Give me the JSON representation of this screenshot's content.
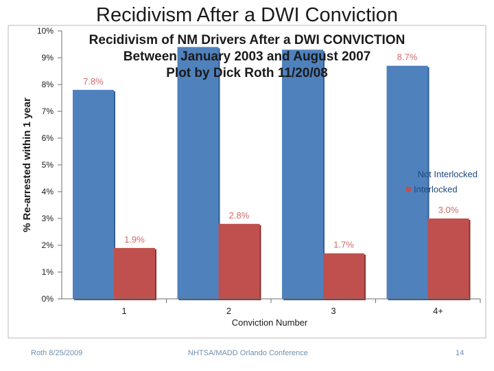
{
  "slide": {
    "title": "Recidivism After a DWI Conviction",
    "footer_date": "Roth 8/25/2009",
    "footer_conference": "NHTSA/MADD Orlando Conference",
    "page_number": "14"
  },
  "chart_data": {
    "type": "bar",
    "title_lines": [
      "Recidivism of NM Drivers After a DWI CONVICTION",
      "Between January 2003 and August 2007",
      "Plot by Dick Roth  11/20/08"
    ],
    "xlabel": "Conviction Number",
    "ylabel": "% Re-arrested within 1 year",
    "categories": [
      "1",
      "2",
      "3",
      "4+"
    ],
    "ylim": [
      0,
      10
    ],
    "yticks": [
      "0%",
      "1%",
      "2%",
      "3%",
      "4%",
      "5%",
      "6%",
      "7%",
      "8%",
      "9%",
      "10%"
    ],
    "legend_position": "right",
    "series": [
      {
        "name": "Not Interlocked",
        "color": "#4f81bd",
        "values": [
          7.8,
          9.4,
          9.3,
          8.7
        ],
        "labels": [
          "7.8%",
          "",
          "",
          "8.7%"
        ]
      },
      {
        "name": "Interlocked",
        "color": "#c0504d",
        "values": [
          1.9,
          2.8,
          1.7,
          3.0
        ],
        "labels": [
          "1.9%",
          "2.8%",
          "1.7%",
          "3.0%"
        ]
      }
    ]
  }
}
